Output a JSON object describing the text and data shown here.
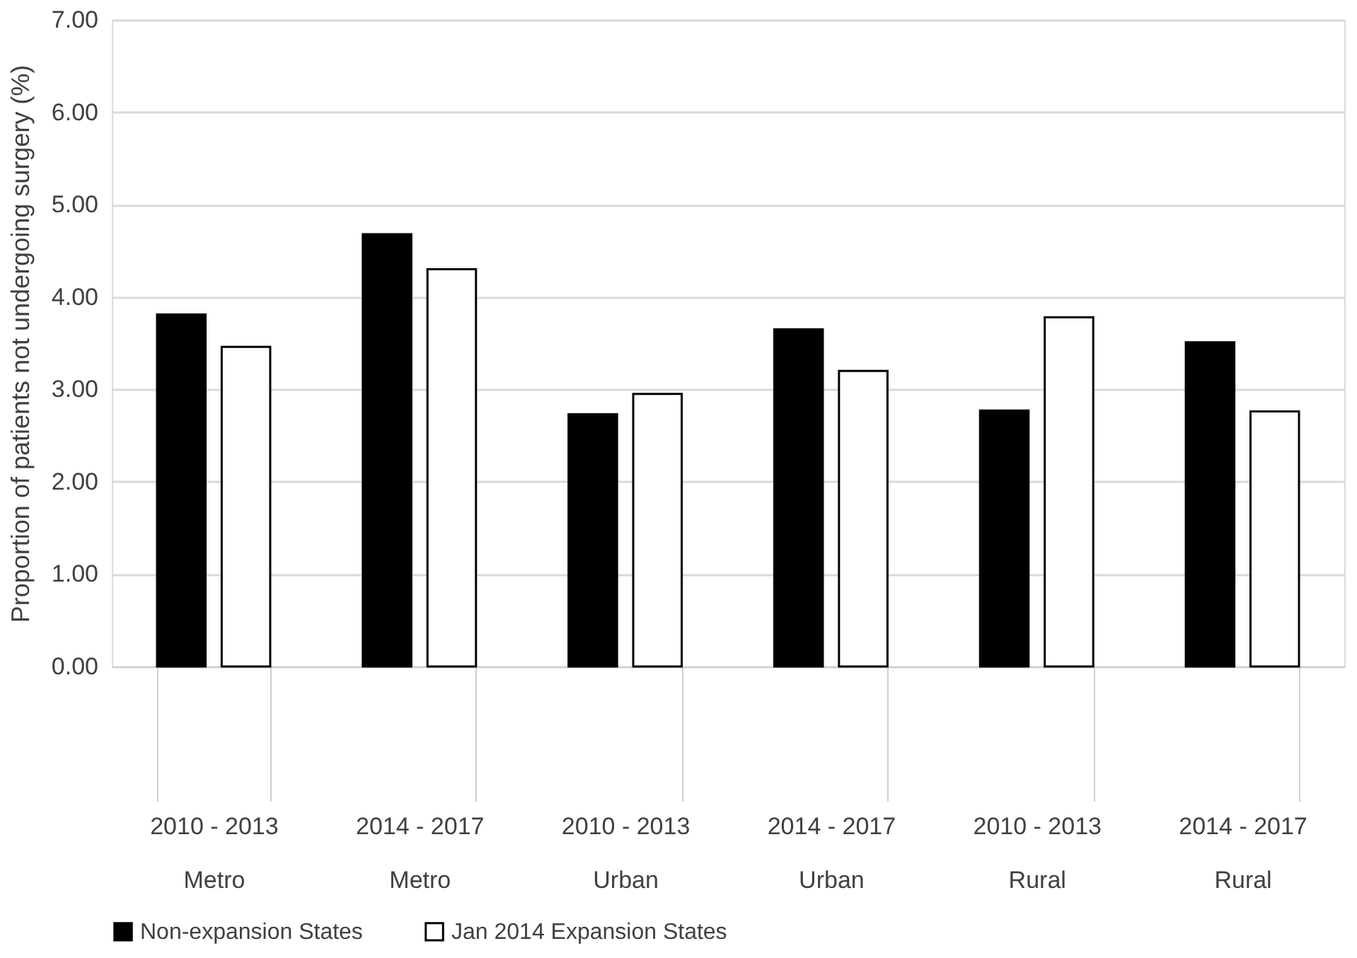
{
  "chart_data": {
    "type": "bar",
    "ylabel": "Proportion of patients not undergoing surgery (%)",
    "categories": [
      "2010 - 2013\nMetro",
      "2014 - 2017\nMetro",
      "2010 - 2013\nUrban",
      "2014 - 2017\nUrban",
      "2010 - 2013\nRural",
      "2014 - 2017\nRural"
    ],
    "series": [
      {
        "name": "Non-expansion States",
        "color": "#000000",
        "values": [
          3.81,
          4.68,
          2.73,
          3.65,
          2.77,
          3.51
        ]
      },
      {
        "name": "Jan 2014 Expansion States",
        "color": "#ffffff",
        "values": [
          3.46,
          4.3,
          2.95,
          3.2,
          3.78,
          2.76
        ]
      }
    ],
    "ylim": [
      0,
      7
    ],
    "yticks": [
      {
        "value": 0,
        "label": "0.00"
      },
      {
        "value": 1,
        "label": "1.00"
      },
      {
        "value": 2,
        "label": "2.00"
      },
      {
        "value": 3,
        "label": "3.00"
      },
      {
        "value": 4,
        "label": "4.00"
      },
      {
        "value": 5,
        "label": "5.00"
      },
      {
        "value": 6,
        "label": "6.00"
      },
      {
        "value": 7,
        "label": "7.00"
      }
    ],
    "grid": "y",
    "legend": "bottom"
  }
}
